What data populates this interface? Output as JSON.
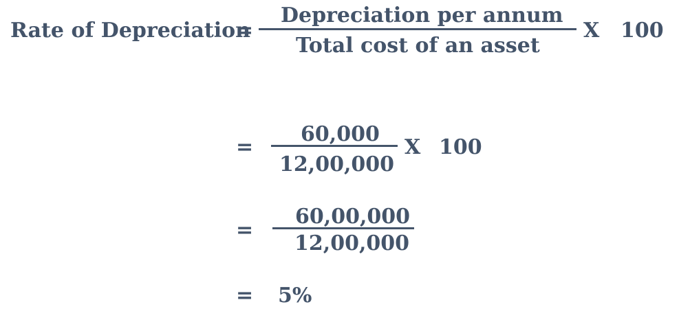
{
  "formula": {
    "lhs": "Rate of Depreciation",
    "eq": "=",
    "times": "X",
    "multiplier": "100",
    "step1": {
      "numerator": "Depreciation per annum",
      "denominator": "Total cost of an asset"
    },
    "step2": {
      "numerator": "60,000",
      "denominator": "12,00,000"
    },
    "step3": {
      "numerator": "60,00,000",
      "denominator": "12,00,000"
    },
    "result": "5%"
  }
}
